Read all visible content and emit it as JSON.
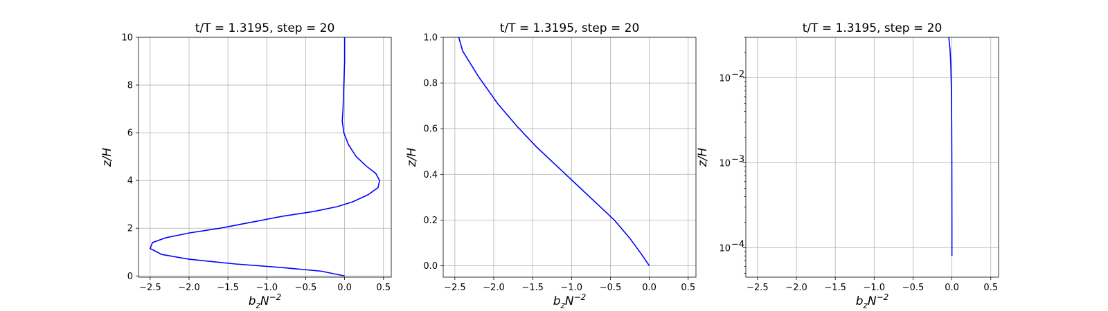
{
  "chart_data": [
    {
      "type": "line",
      "title": "t/T = 1.3195, step = 20",
      "xlabel": "b_zN^{-2}",
      "ylabel": "z/H",
      "xlim": [
        -2.65,
        0.6
      ],
      "ylim": [
        -0.05,
        10
      ],
      "yscale": "linear",
      "grid": true,
      "xticks": [
        -2.5,
        -2.0,
        -1.5,
        -1.0,
        -0.5,
        0.0,
        0.5
      ],
      "xticklabels": [
        "−2.5",
        "−2.0",
        "−1.5",
        "−1.0",
        "−0.5",
        "0.0",
        "0.5"
      ],
      "yticks": [
        0,
        2,
        4,
        6,
        8,
        10
      ],
      "yticklabels": [
        "0",
        "2",
        "4",
        "6",
        "8",
        "10"
      ],
      "series": [
        {
          "color": "#0000ff",
          "x": [
            0.0,
            -0.3,
            -0.8,
            -1.4,
            -2.0,
            -2.35,
            -2.5,
            -2.47,
            -2.3,
            -2.0,
            -1.6,
            -1.2,
            -0.8,
            -0.4,
            -0.1,
            0.1,
            0.3,
            0.43,
            0.45,
            0.4,
            0.28,
            0.15,
            0.05,
            -0.01,
            -0.03,
            -0.02,
            -0.01,
            0.0,
            0.0
          ],
          "y": [
            0.0,
            0.2,
            0.35,
            0.5,
            0.7,
            0.9,
            1.15,
            1.4,
            1.6,
            1.8,
            2.0,
            2.25,
            2.5,
            2.7,
            2.9,
            3.1,
            3.4,
            3.7,
            4.0,
            4.3,
            4.6,
            5.0,
            5.5,
            6.0,
            6.5,
            7.0,
            8.0,
            9.0,
            10.0
          ]
        }
      ]
    },
    {
      "type": "line",
      "title": "t/T = 1.3195, step = 20",
      "xlabel": "b_zN^{-2}",
      "ylabel": "z/H",
      "xlim": [
        -2.65,
        0.6
      ],
      "ylim": [
        -0.05,
        1.0
      ],
      "yscale": "linear",
      "grid": true,
      "xticks": [
        -2.5,
        -2.0,
        -1.5,
        -1.0,
        -0.5,
        0.0,
        0.5
      ],
      "xticklabels": [
        "−2.5",
        "−2.0",
        "−1.5",
        "−1.0",
        "−0.5",
        "0.0",
        "0.5"
      ],
      "yticks": [
        0.0,
        0.2,
        0.4,
        0.6,
        0.8,
        1.0
      ],
      "yticklabels": [
        "0.0",
        "0.2",
        "0.4",
        "0.6",
        "0.8",
        "1.0"
      ],
      "series": [
        {
          "color": "#0000ff",
          "x": [
            0.0,
            -0.1,
            -0.25,
            -0.45,
            -0.7,
            -0.95,
            -1.2,
            -1.45,
            -1.7,
            -1.95,
            -2.2,
            -2.4,
            -2.45
          ],
          "y": [
            0.0,
            0.05,
            0.12,
            0.2,
            0.28,
            0.36,
            0.44,
            0.52,
            0.61,
            0.71,
            0.83,
            0.94,
            1.0
          ]
        }
      ]
    },
    {
      "type": "line",
      "title": "t/T = 1.3195, step = 20",
      "xlabel": "b_zN^{-2}",
      "ylabel": "z/H",
      "xlim": [
        -2.65,
        0.6
      ],
      "ylim": [
        4.5e-05,
        0.03
      ],
      "yscale": "log",
      "grid": true,
      "xticks": [
        -2.5,
        -2.0,
        -1.5,
        -1.0,
        -0.5,
        0.0,
        0.5
      ],
      "xticklabels": [
        "−2.5",
        "−2.0",
        "−1.5",
        "−1.0",
        "−0.5",
        "0.0",
        "0.5"
      ],
      "yticks": [
        0.0001,
        0.001,
        0.01
      ],
      "yticklabels": [
        "10",
        "10",
        "10"
      ],
      "ytickexponents": [
        "−4",
        "−3",
        "−2"
      ],
      "series": [
        {
          "color": "#0000ff",
          "x": [
            0.0,
            0.0,
            -0.001,
            -0.003,
            -0.008,
            -0.015,
            -0.025,
            -0.04
          ],
          "y": [
            8e-05,
            0.0002,
            0.001,
            0.003,
            0.008,
            0.015,
            0.022,
            0.03
          ]
        }
      ]
    }
  ]
}
